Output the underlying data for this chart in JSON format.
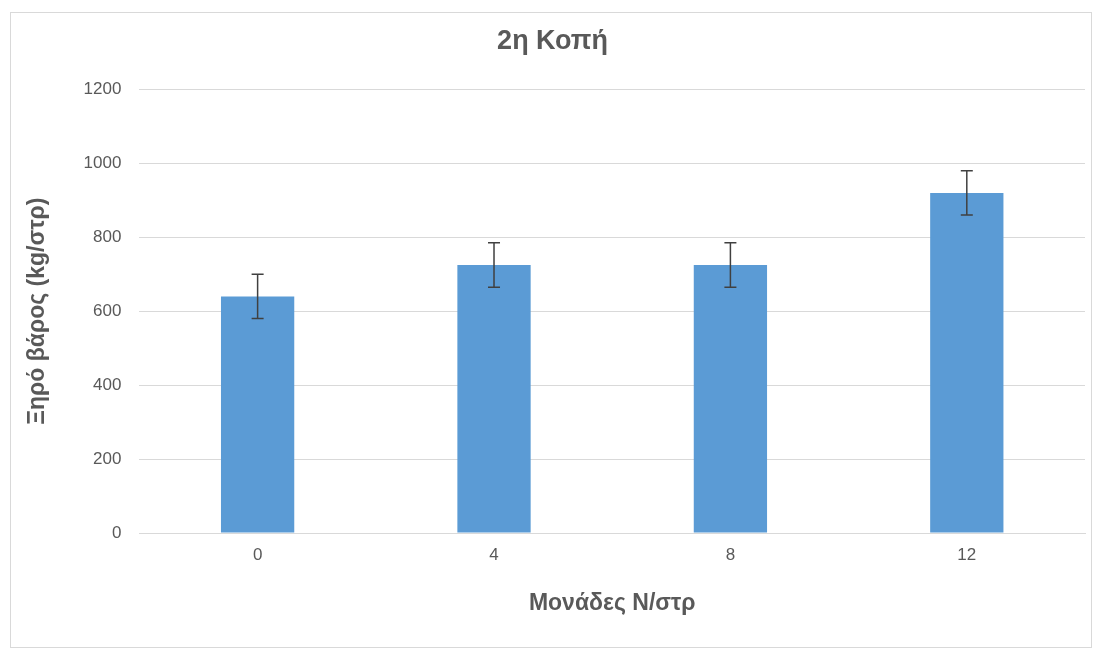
{
  "chart_data": {
    "type": "bar",
    "title": "2η Κοπή",
    "xlabel": "Μονάδες N/στρ",
    "ylabel": "Ξηρό βάρος (kg/στρ)",
    "categories": [
      "0",
      "4",
      "8",
      "12"
    ],
    "values": [
      640,
      725,
      725,
      920
    ],
    "errors": [
      60,
      60,
      60,
      60
    ],
    "color": "#5b9bd5",
    "ylim": [
      0,
      1200
    ],
    "yticks": [
      0,
      200,
      400,
      600,
      800,
      1000,
      1200
    ],
    "grid": "y",
    "legend": false
  }
}
